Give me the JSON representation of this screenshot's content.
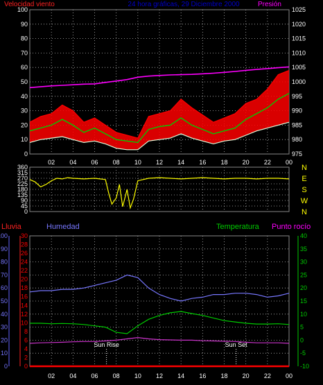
{
  "colors": {
    "wind": "#ff0000",
    "gust": "#ff0000",
    "avg": "#00cc00",
    "min": "#ddffdd",
    "pressure": "#ff00ff",
    "direction": "#ffff00",
    "rain": "#ff0000",
    "humidity": "#7777ff",
    "temperature": "#00cc00",
    "dewpoint": "#cc33cc",
    "grid": "#bbbbbb",
    "subtitle": "#0000cc",
    "sun": "#ffffff",
    "axis_text": "#ffffff"
  },
  "header": {
    "left": "Velocidad viento",
    "center": "24 hora gráficas, 29 Diciembre 2000",
    "right": "Presión"
  },
  "time_labels": [
    "02",
    "04",
    "06",
    "08",
    "10",
    "12",
    "14",
    "16",
    "18",
    "20",
    "22",
    "00"
  ],
  "chart_data": [
    {
      "type": "line",
      "name": "wind-chart",
      "x_hours": [
        0,
        1,
        2,
        3,
        4,
        5,
        6,
        7,
        8,
        9,
        10,
        11,
        12,
        13,
        14,
        15,
        16,
        17,
        18,
        19,
        20,
        21,
        22,
        23,
        24
      ],
      "series": [
        {
          "key": "max",
          "axis": "left",
          "values": [
            22,
            26,
            28,
            34,
            30,
            22,
            25,
            20,
            15,
            13,
            11,
            26,
            28,
            30,
            38,
            32,
            27,
            22,
            25,
            28,
            35,
            38,
            45,
            55,
            58
          ]
        },
        {
          "key": "avg",
          "axis": "left",
          "values": [
            16,
            18,
            20,
            24,
            20,
            15,
            18,
            14,
            10,
            9,
            8,
            17,
            19,
            20,
            25,
            20,
            17,
            14,
            16,
            18,
            24,
            28,
            32,
            38,
            42
          ]
        },
        {
          "key": "min",
          "axis": "left",
          "values": [
            8,
            10,
            11,
            12,
            10,
            8,
            9,
            7,
            4,
            3,
            3,
            9,
            10,
            11,
            14,
            11,
            9,
            7,
            9,
            10,
            13,
            16,
            18,
            20,
            22
          ]
        },
        {
          "key": "pressure",
          "axis": "right",
          "values": [
            998,
            998.3,
            998.6,
            998.8,
            999,
            999.2,
            999.3,
            999.8,
            1000.3,
            1000.8,
            1001.6,
            1002,
            1002.2,
            1002.4,
            1002.5,
            1002.6,
            1002.8,
            1003,
            1003.3,
            1003.6,
            1004,
            1004.3,
            1004.6,
            1004.9,
            1005.2
          ]
        }
      ],
      "left_axis": {
        "ticks": [
          "0",
          "10",
          "20",
          "30",
          "40",
          "50",
          "60",
          "70",
          "80",
          "90",
          "100"
        ],
        "ylim": [
          0,
          100
        ]
      },
      "right_axis": {
        "ticks": [
          "975",
          "980",
          "985",
          "990",
          "995",
          "1000",
          "1005",
          "1010",
          "1015",
          "1020",
          "1025"
        ],
        "ylim": [
          975,
          1025
        ]
      },
      "grid": true
    },
    {
      "type": "line",
      "name": "direction-chart",
      "x_hours": [
        0,
        0.5,
        1,
        1.5,
        2,
        2.5,
        3,
        3.5,
        4,
        5,
        6,
        7,
        7.3,
        7.6,
        8,
        8.3,
        8.6,
        9,
        9.3,
        9.6,
        10,
        11,
        12,
        13,
        14,
        15,
        16,
        17,
        18,
        19,
        20,
        21,
        22,
        23,
        24
      ],
      "values": [
        260,
        240,
        200,
        220,
        250,
        270,
        265,
        275,
        270,
        265,
        270,
        260,
        150,
        60,
        110,
        220,
        40,
        180,
        30,
        100,
        250,
        270,
        275,
        270,
        265,
        270,
        275,
        270,
        265,
        270,
        270,
        265,
        270,
        270,
        265
      ],
      "left_axis": {
        "ticks": [
          "0",
          "45",
          "90",
          "135",
          "180",
          "225",
          "270",
          "315",
          "360"
        ],
        "ylim": [
          0,
          360
        ]
      },
      "compass": [
        "N",
        "W",
        "S",
        "E",
        "N"
      ],
      "grid": true
    },
    {
      "type": "line",
      "name": "weather-chart",
      "legend": [
        "Lluvia",
        "Humedad",
        "Temperatura",
        "Punto rocío"
      ],
      "x_hours": [
        0,
        1,
        2,
        3,
        4,
        5,
        6,
        7,
        8,
        9,
        10,
        11,
        12,
        13,
        14,
        15,
        16,
        17,
        18,
        19,
        20,
        21,
        22,
        23,
        24
      ],
      "series": [
        {
          "key": "humidity",
          "axis": "pct",
          "values": [
            57,
            58,
            58,
            59,
            59,
            60,
            62,
            64,
            66,
            70,
            68,
            60,
            55,
            52,
            50,
            52,
            53,
            55,
            55,
            56,
            56,
            55,
            53,
            54,
            56
          ]
        },
        {
          "key": "temperature",
          "axis": "temp",
          "values": [
            6.5,
            6.5,
            6.3,
            6.4,
            6.3,
            6.0,
            5.5,
            5.0,
            3.0,
            2.5,
            5.5,
            8.0,
            9.5,
            10.5,
            11.0,
            10.2,
            9.5,
            8.5,
            7.5,
            7.0,
            6.5,
            6.2,
            6.2,
            6.3,
            6.0
          ]
        },
        {
          "key": "dewpoint",
          "axis": "temp",
          "values": [
            -1.2,
            -1.0,
            -0.9,
            -0.8,
            -0.6,
            -0.5,
            -0.5,
            -0.3,
            0.0,
            0.5,
            1.0,
            0.5,
            0.2,
            0.1,
            0.0,
            0.0,
            -0.2,
            -0.3,
            -0.4,
            -0.5,
            -0.8,
            -1.0,
            -1.0,
            -1.0,
            -1.2
          ]
        },
        {
          "key": "rain",
          "axis": "rain",
          "values": [
            0,
            0,
            0,
            0,
            0,
            0,
            0,
            0,
            0,
            0,
            0,
            0,
            0,
            0,
            0,
            0,
            0,
            0,
            0,
            0,
            0,
            0,
            0,
            0,
            0
          ]
        }
      ],
      "pct_axis": {
        "ticks": [
          "0",
          "10",
          "20",
          "30",
          "40",
          "50",
          "60",
          "70",
          "80",
          "90",
          "100"
        ],
        "ylim": [
          0,
          100
        ]
      },
      "rain_axis": {
        "ticks": [
          "0",
          "2",
          "4",
          "6",
          "8",
          "10",
          "12",
          "14",
          "16",
          "18",
          "20",
          "22",
          "24",
          "26",
          "28",
          "30"
        ],
        "ylim": [
          0,
          30
        ]
      },
      "temp_axis": {
        "ticks": [
          "-10",
          "-5",
          "0",
          "5",
          "10",
          "15",
          "20",
          "25",
          "30",
          "35",
          "40"
        ],
        "ylim": [
          -10,
          40
        ]
      },
      "events": [
        {
          "label": "Sun Rise",
          "hour": 7.1
        },
        {
          "label": "Sun Set",
          "hour": 19.1
        }
      ],
      "grid": true
    }
  ]
}
